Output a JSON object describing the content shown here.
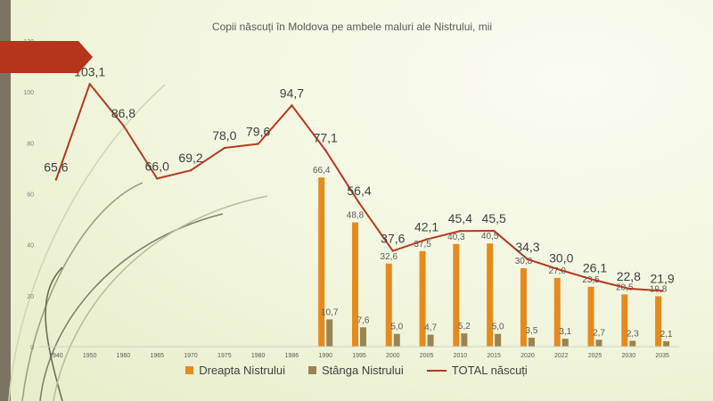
{
  "chart_data": {
    "type": "bar",
    "title": "Copii născuți în Moldova pe ambele maluri ale Nistrului, mii",
    "categories": [
      "1940",
      "1950",
      "1960",
      "1965",
      "1970",
      "1975",
      "1980",
      "1986",
      "1990",
      "1995",
      "2000",
      "2005",
      "2010",
      "2015",
      "2020",
      "2022",
      "2025",
      "2030",
      "2035"
    ],
    "ylim": [
      0,
      120
    ],
    "yticks": [
      "0",
      "20",
      "40",
      "60",
      "80",
      "100",
      "120"
    ],
    "series": [
      {
        "name": "Dreapta Nistrului",
        "type": "bar",
        "color": "#e58a1f",
        "values": [
          null,
          null,
          null,
          null,
          null,
          null,
          null,
          null,
          66.4,
          48.8,
          32.6,
          37.5,
          40.3,
          40.5,
          30.8,
          27.0,
          23.5,
          20.5,
          19.8
        ],
        "labels": [
          "",
          "",
          "",
          "",
          "",
          "",
          "",
          "",
          "66,4",
          "48,8",
          "32,6",
          "37,5",
          "40,3",
          "40,5",
          "30,8",
          "27,0",
          "23,5",
          "20,5",
          "19,8"
        ]
      },
      {
        "name": "Stânga Nistrului",
        "type": "bar",
        "color": "#9a8550",
        "values": [
          null,
          null,
          null,
          null,
          null,
          null,
          null,
          null,
          10.7,
          7.6,
          5.0,
          4.7,
          5.2,
          5.0,
          3.5,
          3.1,
          2.7,
          2.3,
          2.1
        ],
        "labels": [
          "",
          "",
          "",
          "",
          "",
          "",
          "",
          "",
          "10,7",
          "7,6",
          "5,0",
          "4,7",
          "5,2",
          "5,0",
          "3,5",
          "3,1",
          "2,7",
          "2,3",
          "2,1"
        ]
      },
      {
        "name": "TOTAL născuți",
        "type": "line",
        "color": "#b23a1e",
        "values": [
          65.6,
          103.1,
          86.8,
          66.0,
          69.2,
          78.0,
          79.6,
          94.7,
          77.1,
          56.4,
          37.6,
          42.1,
          45.4,
          45.5,
          34.3,
          30.0,
          26.1,
          22.8,
          21.9
        ],
        "labels": [
          "65,6",
          "103,1",
          "86,8",
          "66,0",
          "69,2",
          "78,0",
          "79,6",
          "94,7",
          "77,1",
          "56,4",
          "37,6",
          "42,1",
          "45,4",
          "45,5",
          "34,3",
          "30,0",
          "26,1",
          "22,8",
          "21,9"
        ]
      }
    ]
  },
  "colors": {
    "accent": "#b5341c",
    "sidebar": "#7c7463"
  }
}
